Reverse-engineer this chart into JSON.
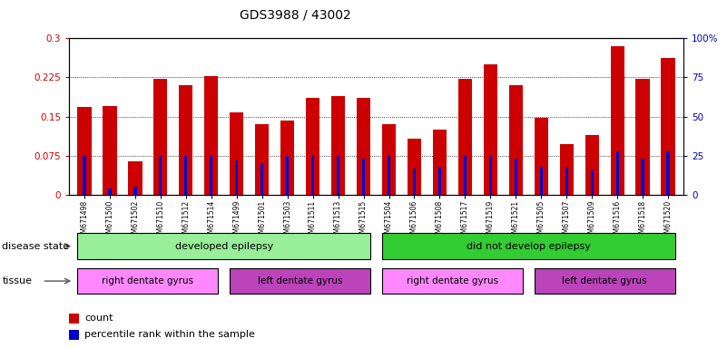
{
  "title": "GDS3988 / 43002",
  "samples": [
    "GSM671498",
    "GSM671500",
    "GSM671502",
    "GSM671510",
    "GSM671512",
    "GSM671514",
    "GSM671499",
    "GSM671501",
    "GSM671503",
    "GSM671511",
    "GSM671513",
    "GSM671515",
    "GSM671504",
    "GSM671506",
    "GSM671508",
    "GSM671517",
    "GSM671519",
    "GSM671521",
    "GSM671505",
    "GSM671507",
    "GSM671509",
    "GSM671516",
    "GSM671518",
    "GSM671520"
  ],
  "counts": [
    0.168,
    0.17,
    0.065,
    0.222,
    0.21,
    0.228,
    0.158,
    0.135,
    0.142,
    0.185,
    0.19,
    0.185,
    0.135,
    0.108,
    0.125,
    0.222,
    0.25,
    0.21,
    0.148,
    0.098,
    0.115,
    0.285,
    0.222,
    0.262
  ],
  "percentile_ranks": [
    25,
    4,
    5,
    25,
    25,
    25,
    22,
    20,
    25,
    25,
    25,
    23,
    25,
    17,
    18,
    25,
    25,
    23,
    18,
    18,
    16,
    28,
    23,
    28
  ],
  "disease_state_groups": [
    {
      "label": "developed epilepsy",
      "start": 0,
      "end": 11,
      "color": "#99EE99"
    },
    {
      "label": "did not develop epilepsy",
      "start": 12,
      "end": 23,
      "color": "#33CC33"
    }
  ],
  "tissue_groups": [
    {
      "label": "right dentate gyrus",
      "start": 0,
      "end": 5,
      "color": "#FF88FF"
    },
    {
      "label": "left dentate gyrus",
      "start": 6,
      "end": 11,
      "color": "#BB44BB"
    },
    {
      "label": "right dentate gyrus",
      "start": 12,
      "end": 17,
      "color": "#FF88FF"
    },
    {
      "label": "left dentate gyrus",
      "start": 18,
      "end": 23,
      "color": "#BB44BB"
    }
  ],
  "ylim_left": [
    0,
    0.3
  ],
  "ylim_right": [
    0,
    100
  ],
  "yticks_left": [
    0,
    0.075,
    0.15,
    0.225,
    0.3
  ],
  "yticks_left_labels": [
    "0",
    "0.075",
    "0.15",
    "0.225",
    "0.3"
  ],
  "yticks_right": [
    0,
    25,
    50,
    75,
    100
  ],
  "yticks_right_labels": [
    "0",
    "25",
    "50",
    "75",
    "100%"
  ],
  "bar_color": "#CC0000",
  "marker_color": "#0000CC",
  "legend_count_label": "count",
  "legend_percentile_label": "percentile rank within the sample",
  "disease_label": "disease state",
  "tissue_label": "tissue",
  "bar_width": 0.55
}
